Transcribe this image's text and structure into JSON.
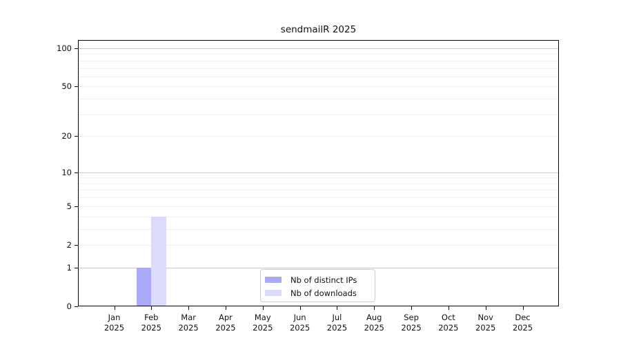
{
  "chart_data": {
    "type": "bar",
    "title": "sendmailR 2025",
    "categories": [
      "Jan",
      "Feb",
      "Mar",
      "Apr",
      "May",
      "Jun",
      "Jul",
      "Aug",
      "Sep",
      "Oct",
      "Nov",
      "Dec"
    ],
    "category_year": "2025",
    "series": [
      {
        "name": "Nb of distinct IPs",
        "color": "#a9a9f8",
        "values": [
          0,
          1,
          0,
          0,
          0,
          0,
          0,
          0,
          0,
          0,
          0,
          0
        ]
      },
      {
        "name": "Nb of downloads",
        "color": "#dcdcfa",
        "values": [
          0,
          4,
          0,
          0,
          0,
          0,
          0,
          0,
          0,
          0,
          0,
          0
        ]
      }
    ],
    "yscale": "log1p",
    "ylim": [
      0,
      100
    ],
    "yticks": [
      0,
      1,
      2,
      5,
      10,
      20,
      50,
      100
    ],
    "grid_major": [
      1,
      10,
      100
    ],
    "grid_minor": [
      2,
      3,
      4,
      5,
      6,
      7,
      8,
      9,
      20,
      30,
      40,
      50,
      60,
      70,
      80,
      90
    ],
    "legend_position": "lower center",
    "colors": {
      "grid_major": "#c8c8c8",
      "grid_minor": "#efefef",
      "frame": "#000000",
      "text": "#111111",
      "background": "#ffffff"
    }
  }
}
